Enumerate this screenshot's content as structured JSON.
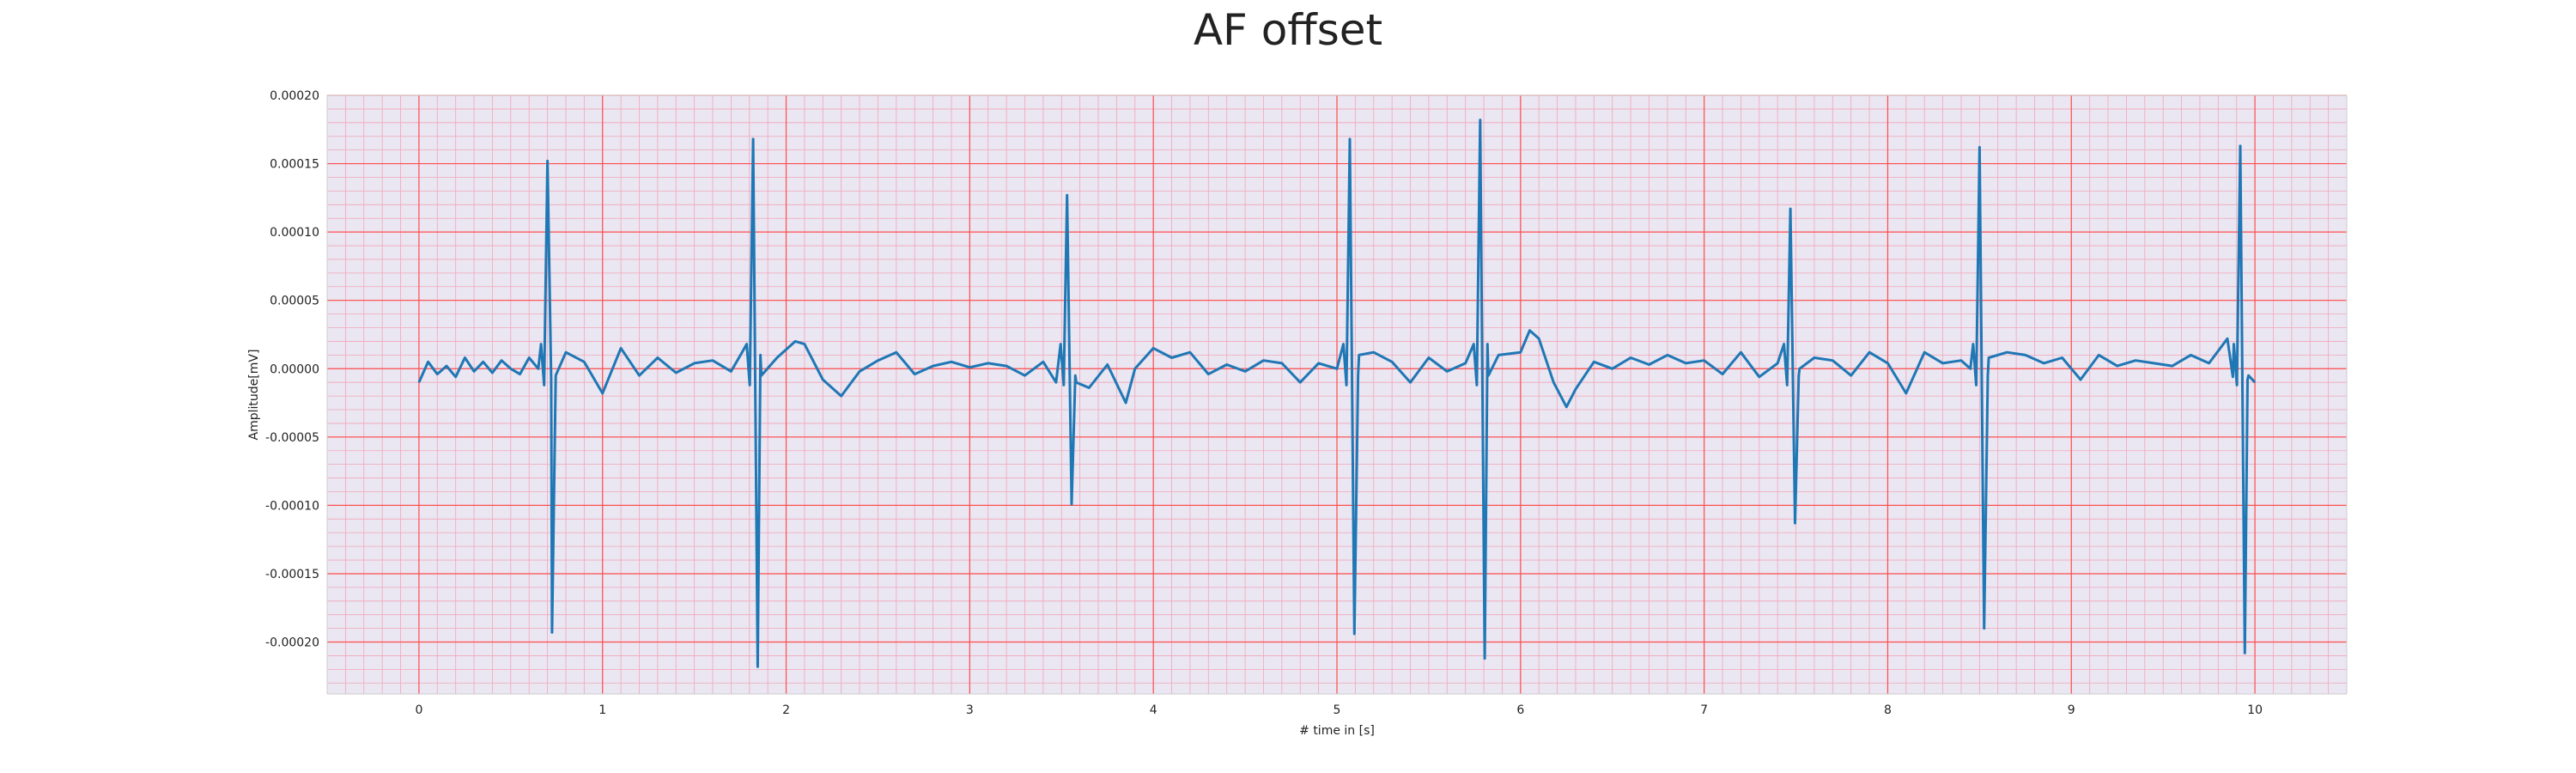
{
  "chart_data": {
    "type": "line",
    "title": "AF offset",
    "xlabel": "# time in [s]",
    "ylabel": "Amplitude[mV]",
    "xlim": [
      -0.5,
      10.5
    ],
    "ylim": [
      -0.000238,
      0.0002
    ],
    "x_ticks": [
      0,
      1,
      2,
      3,
      4,
      5,
      6,
      7,
      8,
      9,
      10
    ],
    "x_tick_labels": [
      "0",
      "1",
      "2",
      "3",
      "4",
      "5",
      "6",
      "7",
      "8",
      "9",
      "10"
    ],
    "y_ticks": [
      -0.0002,
      -0.00015,
      -0.0001,
      -5e-05,
      0,
      5e-05,
      0.0001,
      0.00015,
      0.0002
    ],
    "y_tick_labels": [
      "-0.00020",
      "-0.00015",
      "-0.00010",
      "-0.00005",
      "0.00000",
      "0.00005",
      "0.00010",
      "0.00015",
      "0.00020"
    ],
    "grid": true,
    "minor_grid": true,
    "colors": {
      "line": "#1f77b4",
      "major_grid": "#ff4d4d",
      "minor_grid": "#f2a6b8",
      "plot_bg": "#eae6f2"
    },
    "beats": [
      {
        "t": 0.7,
        "r_peak": 0.000152,
        "s_trough": -0.000193
      },
      {
        "t": 1.82,
        "r_peak": 0.000168,
        "s_trough": -0.000218
      },
      {
        "t": 3.53,
        "r_peak": 0.000127,
        "s_trough": -9.9e-05
      },
      {
        "t": 5.07,
        "r_peak": 0.000168,
        "s_trough": -0.000194
      },
      {
        "t": 5.78,
        "r_peak": 0.000182,
        "s_trough": -0.000212
      },
      {
        "t": 7.47,
        "r_peak": 0.000117,
        "s_trough": -0.000113
      },
      {
        "t": 8.5,
        "r_peak": 0.000162,
        "s_trough": -0.00019
      },
      {
        "t": 9.92,
        "r_peak": 0.000163,
        "s_trough": -0.000208
      }
    ],
    "series": [
      {
        "x": [
          0.0,
          0.05,
          0.1,
          0.15,
          0.2,
          0.25,
          0.3,
          0.35,
          0.4,
          0.45,
          0.5,
          0.55,
          0.6,
          0.65,
          0.72,
          0.8,
          0.9,
          1.0,
          1.1,
          1.2,
          1.3,
          1.4,
          1.5,
          1.6,
          1.7,
          1.76,
          1.86,
          1.95,
          2.05,
          2.1,
          2.2,
          2.3,
          2.4,
          2.5,
          2.6,
          2.7,
          2.8,
          2.9,
          3.0,
          3.1,
          3.2,
          3.3,
          3.4,
          3.47,
          3.58,
          3.65,
          3.75,
          3.85,
          3.9,
          4.0,
          4.1,
          4.2,
          4.3,
          4.4,
          4.5,
          4.6,
          4.7,
          4.8,
          4.9,
          5.0,
          5.12,
          5.2,
          5.3,
          5.4,
          5.5,
          5.6,
          5.7,
          5.82,
          5.88,
          6.0,
          6.05,
          6.1,
          6.18,
          6.25,
          6.3,
          6.4,
          6.5,
          6.6,
          6.7,
          6.8,
          6.9,
          7.0,
          7.1,
          7.2,
          7.3,
          7.4,
          7.52,
          7.6,
          7.7,
          7.8,
          7.9,
          8.0,
          8.1,
          8.2,
          8.3,
          8.4,
          8.45,
          8.55,
          8.65,
          8.75,
          8.85,
          8.95,
          9.05,
          9.15,
          9.25,
          9.35,
          9.45,
          9.55,
          9.65,
          9.75,
          9.85,
          9.88,
          9.96,
          10.0
        ],
        "y": [
          -1e-05,
          5e-06,
          -4e-06,
          2e-06,
          -6e-06,
          8e-06,
          -2e-06,
          5e-06,
          -3e-06,
          6e-06,
          0.0,
          -4e-06,
          8e-06,
          0.0,
          -8e-06,
          1.2e-05,
          5e-06,
          -1.8e-05,
          1.5e-05,
          -5e-06,
          8e-06,
          -3e-06,
          4e-06,
          6e-06,
          -2e-06,
          1.2e-05,
          1e-05,
          8e-06,
          2e-05,
          1.8e-05,
          -8e-06,
          -2e-05,
          -2e-06,
          6e-06,
          1.2e-05,
          -4e-06,
          2e-06,
          5e-06,
          1e-06,
          4e-06,
          2e-06,
          -5e-06,
          5e-06,
          -1e-05,
          -1e-05,
          -1.4e-05,
          3e-06,
          -2.5e-05,
          0.0,
          1.5e-05,
          8e-06,
          1.2e-05,
          -4e-06,
          3e-06,
          -2e-06,
          6e-06,
          4e-06,
          -1e-05,
          4e-06,
          0.0,
          1e-05,
          1.2e-05,
          5e-06,
          -1e-05,
          8e-06,
          -2e-06,
          4e-06,
          1.8e-05,
          1e-05,
          1.2e-05,
          2.8e-05,
          2.2e-05,
          -1e-05,
          -2.8e-05,
          -1.5e-05,
          5e-06,
          0.0,
          8e-06,
          3e-06,
          1e-05,
          4e-06,
          6e-06,
          -4e-06,
          1.2e-05,
          -6e-06,
          4e-06,
          0.0,
          8e-06,
          6e-06,
          -5e-06,
          1.2e-05,
          4e-06,
          -1.8e-05,
          1.2e-05,
          4e-06,
          6e-06,
          0.0,
          8e-06,
          1.2e-05,
          1e-05,
          4e-06,
          8e-06,
          -8e-06,
          1e-05,
          2e-06,
          6e-06,
          4e-06,
          2e-06,
          1e-05,
          4e-06,
          2.2e-05,
          -6e-06,
          -8e-06,
          -1e-05
        ]
      }
    ]
  }
}
